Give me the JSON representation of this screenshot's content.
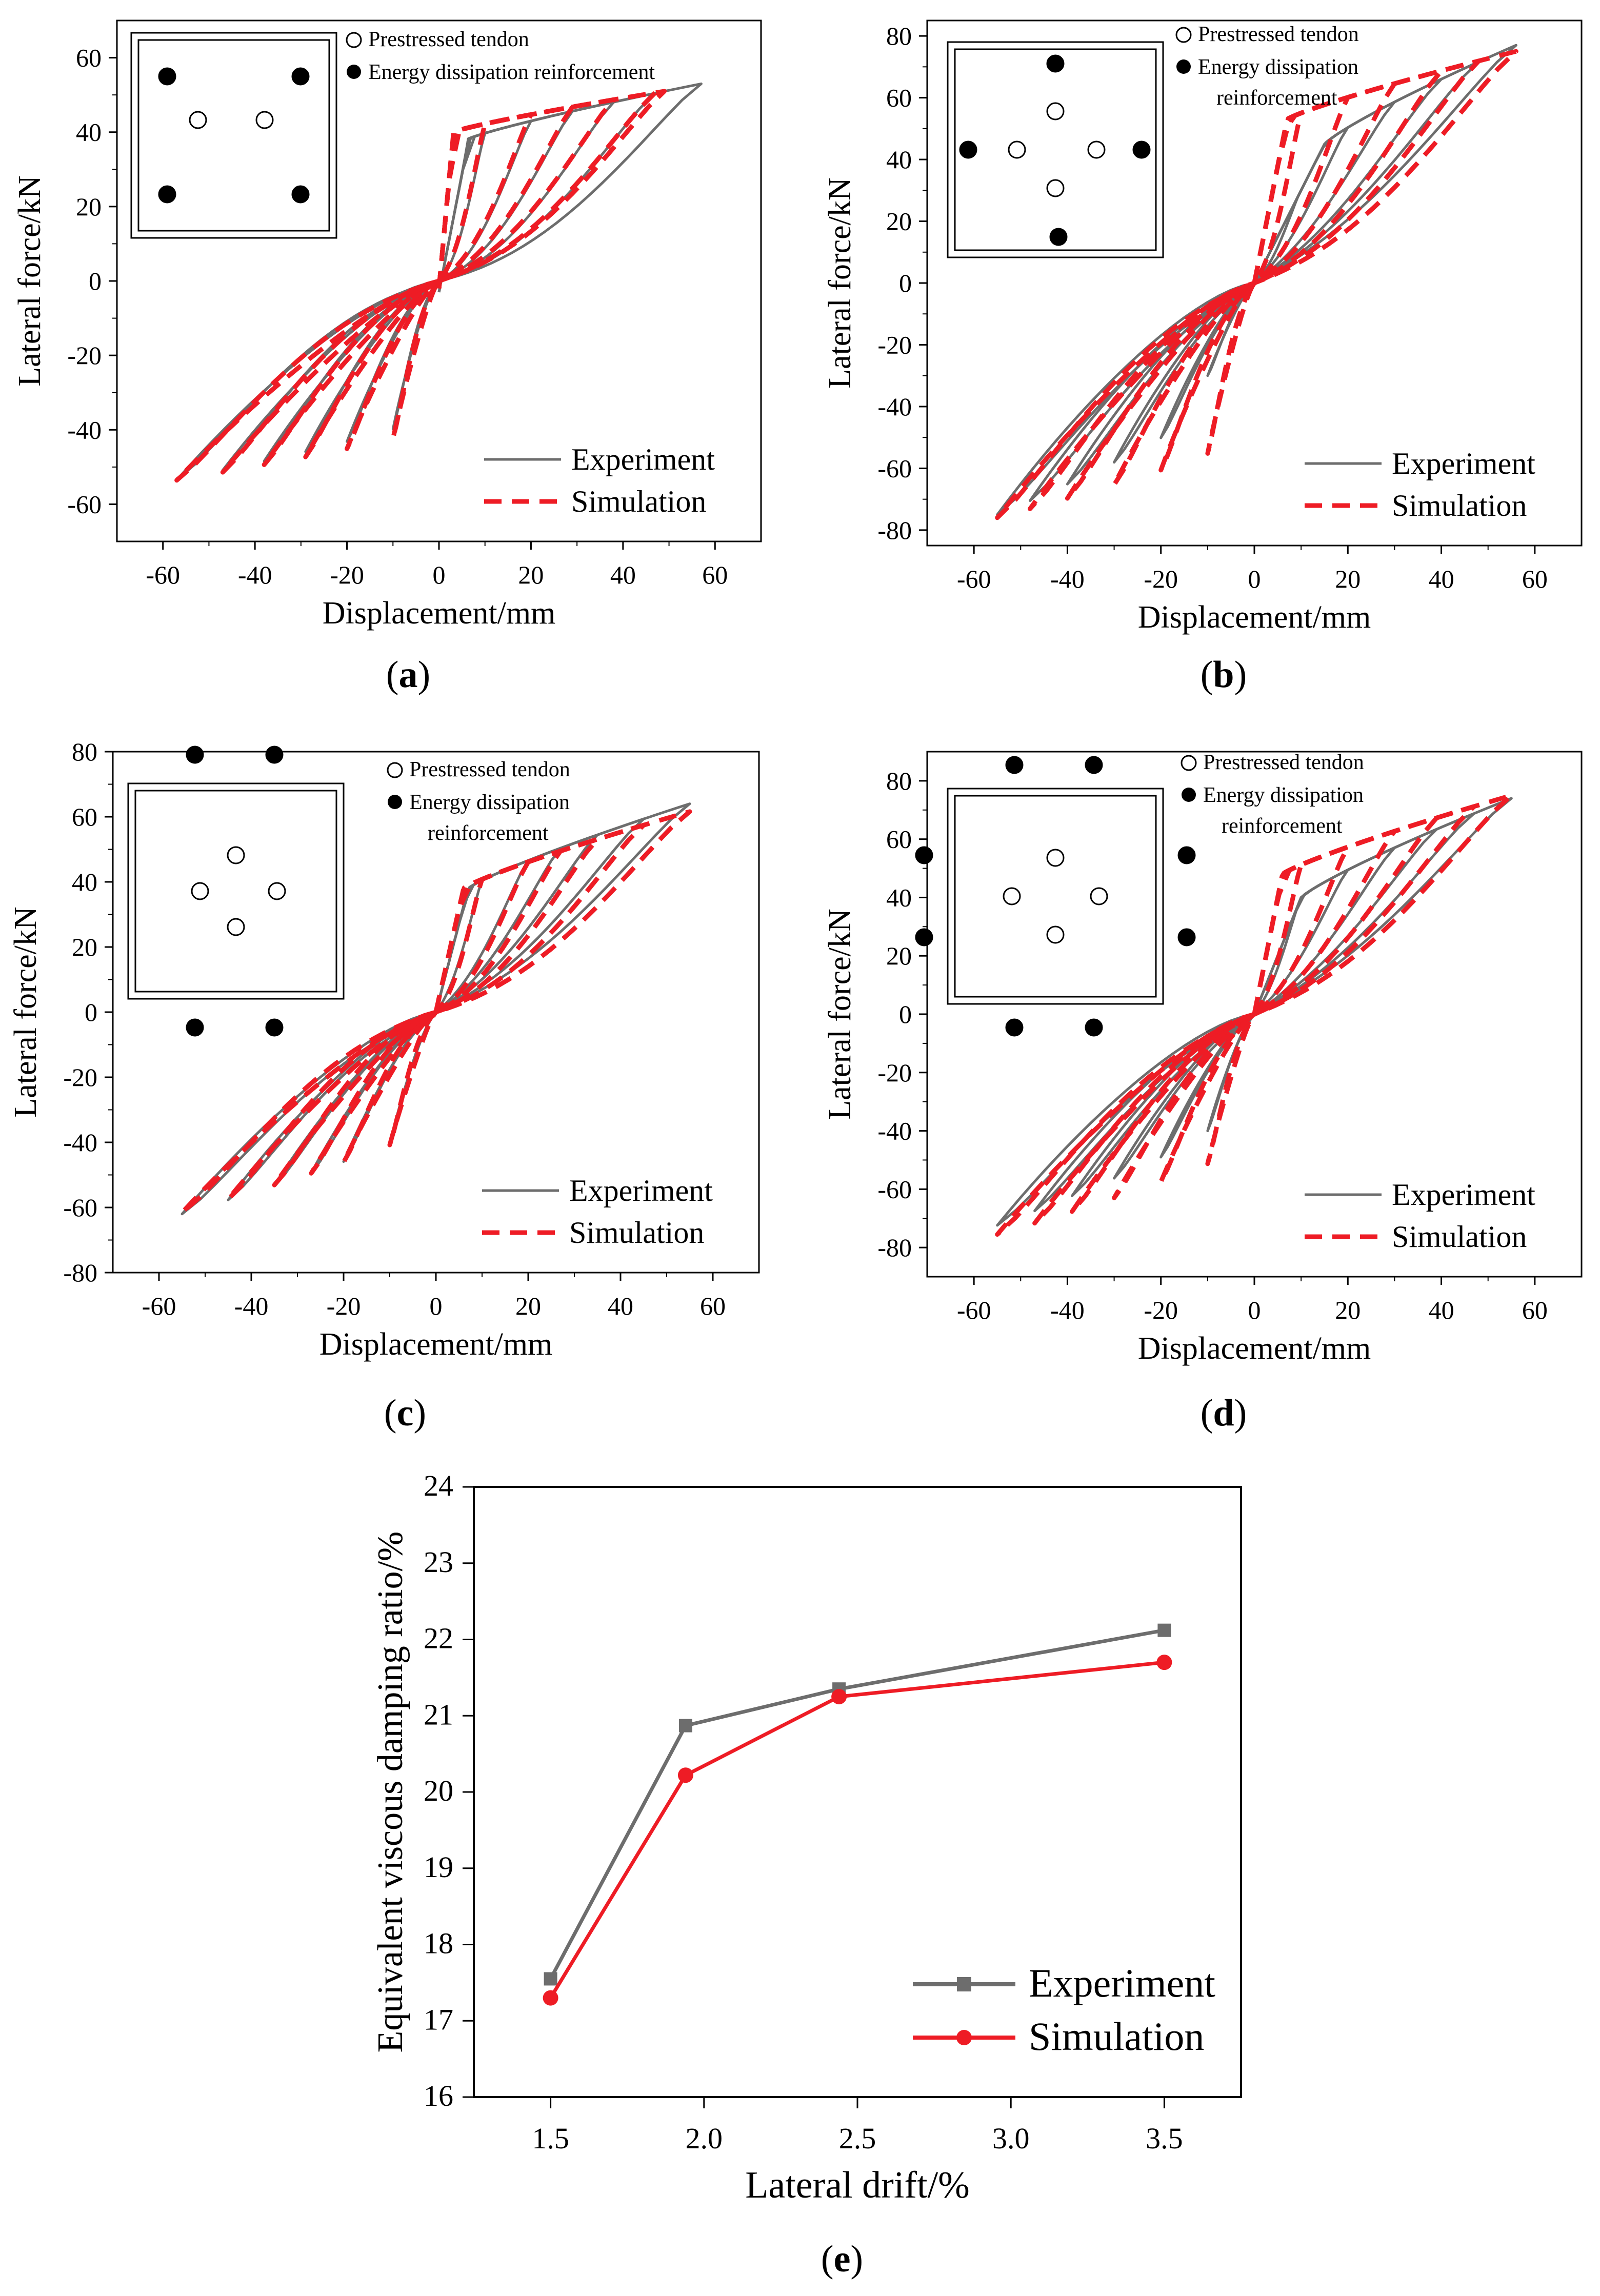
{
  "colors": {
    "experiment": "#6d6d6d",
    "simulation": "#ee1c25",
    "axis": "#000000"
  },
  "chart_data": [
    {
      "id": "a",
      "type": "line",
      "caption": "a",
      "xlabel": "Displacement/mm",
      "ylabel": "Lateral force/kN",
      "xlim": [
        -70,
        70
      ],
      "ylim": [
        -70,
        70
      ],
      "xticks": [
        -60,
        -40,
        -20,
        0,
        20,
        40,
        60
      ],
      "xticklabels": [
        "-60",
        "-40",
        "-20",
        "0",
        "20",
        "40",
        "60"
      ],
      "yticks": [
        -60,
        -40,
        -20,
        0,
        20,
        40,
        60
      ],
      "yticklabels": [
        "-60",
        "-40",
        "-20",
        "0",
        "20",
        "40",
        "60"
      ],
      "legend": [
        "Experiment",
        "Simulation"
      ],
      "inset": {
        "layout": "a",
        "tendon_label": "Prestressed tendon",
        "rebar_label": "Energy dissipation reinforcement"
      },
      "amplitudes": [
        10,
        20,
        29,
        38,
        47,
        57
      ],
      "series": [
        {
          "name": "Experiment",
          "dmax": 57,
          "fmax": 53,
          "dmin": -59,
          "fmin": -54,
          "dy": 6,
          "fy": 38,
          "res": 0.3,
          "h": 3,
          "k2": 0.33,
          "yb": -3
        },
        {
          "name": "Simulation",
          "dmax": 49,
          "fmax": 51,
          "dmin": -59,
          "fmin": -54,
          "dy": 3,
          "fy": 40,
          "res": 0.42,
          "h": 6,
          "k2": 0.45,
          "yb": -2
        }
      ]
    },
    {
      "id": "b",
      "type": "line",
      "caption": "b",
      "xlabel": "Displacement/mm",
      "ylabel": "Lateral force/kN",
      "xlim": [
        -70,
        70
      ],
      "ylim": [
        -85,
        85
      ],
      "xticks": [
        -60,
        -40,
        -20,
        0,
        20,
        40,
        60
      ],
      "xticklabels": [
        "-60",
        "-40",
        "-20",
        "0",
        "20",
        "40",
        "60"
      ],
      "yticks": [
        -80,
        -60,
        -40,
        -20,
        0,
        20,
        40,
        60,
        80
      ],
      "yticklabels": [
        "-80",
        "-60",
        "-40",
        "-20",
        "0",
        "20",
        "40",
        "60",
        "80"
      ],
      "legend": [
        "Experiment",
        "Simulation"
      ],
      "inset": {
        "layout": "b",
        "tendon_label": "Prestressed tendon",
        "rebar_label": "Energy dissipation",
        "rebar_label_2": "reinforcement"
      },
      "amplitudes": [
        10,
        20,
        30,
        40,
        48,
        56
      ],
      "series": [
        {
          "name": "Experiment",
          "dmax": 56,
          "fmax": 77,
          "dmin": -55,
          "fmin": -75,
          "dy": 15,
          "fy": 45,
          "res": 0.3,
          "h": 4,
          "k2": 0.55,
          "yb": 0
        },
        {
          "name": "Simulation",
          "dmax": 56,
          "fmax": 75,
          "dmin": -55,
          "fmin": -76,
          "dy": 7,
          "fy": 53,
          "res": 0.35,
          "h": 8,
          "k2": 0.48,
          "yb": 0
        }
      ]
    },
    {
      "id": "c",
      "type": "line",
      "caption": "c",
      "xlabel": "Displacement/mm",
      "ylabel": "Lateral force/kN",
      "xlim": [
        -70,
        70
      ],
      "ylim": [
        -80,
        80
      ],
      "xticks": [
        -60,
        -40,
        -20,
        0,
        20,
        40,
        60
      ],
      "xticklabels": [
        "-60",
        "-40",
        "-20",
        "0",
        "20",
        "40",
        "60"
      ],
      "yticks": [
        -80,
        -60,
        -40,
        -20,
        0,
        20,
        40,
        60,
        80
      ],
      "yticklabels": [
        "-80",
        "-60",
        "-40",
        "-20",
        "0",
        "20",
        "40",
        "60",
        "80"
      ],
      "legend": [
        "Experiment",
        "Simulation"
      ],
      "inset": {
        "layout": "c",
        "tendon_label": "Prestressed tendon",
        "rebar_label": "Energy dissipation",
        "rebar_label_2": "reinforcement"
      },
      "amplitudes": [
        10,
        20,
        27,
        35,
        45,
        55
      ],
      "series": [
        {
          "name": "Experiment",
          "dmax": 55,
          "fmax": 64,
          "dmin": -55,
          "fmin": -62,
          "dy": 7,
          "fy": 38,
          "res": 0.3,
          "h": 4,
          "k2": 0.5,
          "yb": 0
        },
        {
          "name": "Simulation",
          "dmax": 56,
          "fmax": 62,
          "dmin": -56,
          "fmin": -62,
          "dy": 6,
          "fy": 38,
          "res": 0.32,
          "h": 7,
          "k2": 0.45,
          "yb": 0
        }
      ]
    },
    {
      "id": "d",
      "type": "line",
      "caption": "d",
      "xlabel": "Displacement/mm",
      "ylabel": "Lateral force/kN",
      "xlim": [
        -70,
        70
      ],
      "ylim": [
        -90,
        90
      ],
      "xticks": [
        -60,
        -40,
        -20,
        0,
        20,
        40,
        60
      ],
      "xticklabels": [
        "-60",
        "-40",
        "-20",
        "0",
        "20",
        "40",
        "60"
      ],
      "yticks": [
        -80,
        -60,
        -40,
        -20,
        0,
        20,
        40,
        60,
        80
      ],
      "yticklabels": [
        "-80",
        "-60",
        "-40",
        "-20",
        "0",
        "20",
        "40",
        "60",
        "80"
      ],
      "legend": [
        "Experiment",
        "Simulation"
      ],
      "inset": {
        "layout": "d",
        "tendon_label": "Prestressed tendon",
        "rebar_label": "Energy dissipation",
        "rebar_label_2": "reinforcement"
      },
      "amplitudes": [
        10,
        20,
        30,
        39,
        47,
        55
      ],
      "series": [
        {
          "name": "Experiment",
          "dmax": 55,
          "fmax": 74,
          "dmin": -56,
          "fmin": -73,
          "dy": 10,
          "fy": 40,
          "res": 0.32,
          "h": 4,
          "k2": 0.55,
          "yb": 0
        },
        {
          "name": "Simulation",
          "dmax": 55,
          "fmax": 75,
          "dmin": -56,
          "fmin": -76,
          "dy": 6,
          "fy": 48,
          "res": 0.35,
          "h": 8,
          "k2": 0.5,
          "yb": 0
        }
      ]
    },
    {
      "id": "e",
      "type": "line",
      "caption": "e",
      "xlabel": "Lateral drift/%",
      "ylabel": "Equivalent viscous damping ratio/%",
      "xlim": [
        1.25,
        3.75
      ],
      "ylim": [
        16,
        24
      ],
      "xticks": [
        1.5,
        2.0,
        2.5,
        3.0,
        3.5
      ],
      "xticklabels": [
        "1.5",
        "2.0",
        "2.5",
        "3.0",
        "3.5"
      ],
      "yticks": [
        16,
        17,
        18,
        19,
        20,
        21,
        22,
        23,
        24
      ],
      "yticklabels": [
        "16",
        "17",
        "18",
        "19",
        "20",
        "21",
        "22",
        "23",
        "24"
      ],
      "legend": [
        "Experiment",
        "Simulation"
      ],
      "series": [
        {
          "name": "Experiment",
          "marker": "square",
          "x": [
            1.5,
            1.94,
            2.44,
            3.5
          ],
          "y": [
            17.55,
            20.87,
            21.35,
            22.12
          ]
        },
        {
          "name": "Simulation",
          "marker": "circle",
          "x": [
            1.5,
            1.94,
            2.44,
            3.5
          ],
          "y": [
            17.3,
            20.22,
            21.25,
            21.7
          ]
        }
      ]
    }
  ]
}
